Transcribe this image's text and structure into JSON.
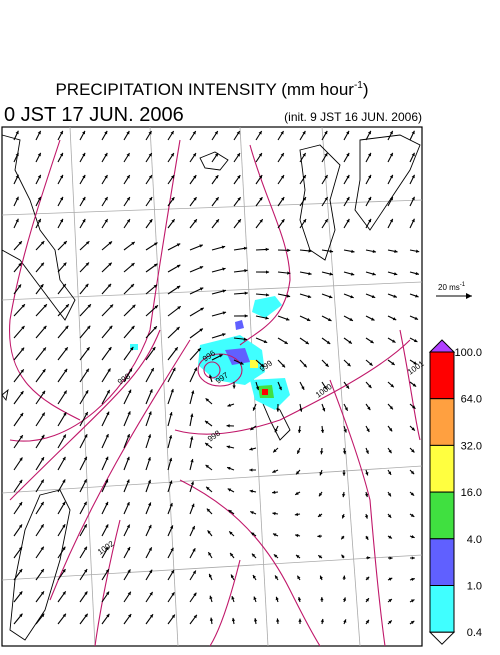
{
  "header": {
    "title": "PRECIPITATION INTENSITY (mm hour",
    "title_exp": "-1",
    "title_close": ")",
    "time": "0 JST 17 JUN. 2006",
    "init": "(init. 9 JST 16 JUN. 2006)"
  },
  "wind_legend": {
    "label": "20 ms",
    "exp": "-1"
  },
  "colorbar": {
    "levels": [
      {
        "label": "100.0",
        "color": "#ff0000"
      },
      {
        "label": "64.0",
        "color": "#ffa040"
      },
      {
        "label": "32.0",
        "color": "#ffff40"
      },
      {
        "label": "16.0",
        "color": "#40e040"
      },
      {
        "label": "4.0",
        "color": "#6060ff"
      },
      {
        "label": "1.0",
        "color": "#40ffff"
      },
      {
        "label": "0.4",
        "color": "#ffffff"
      }
    ],
    "over_color": "#b040ff"
  },
  "isobars": [
    "996",
    "997",
    "998",
    "999",
    "1000",
    "1001",
    "1002",
    "998"
  ]
}
